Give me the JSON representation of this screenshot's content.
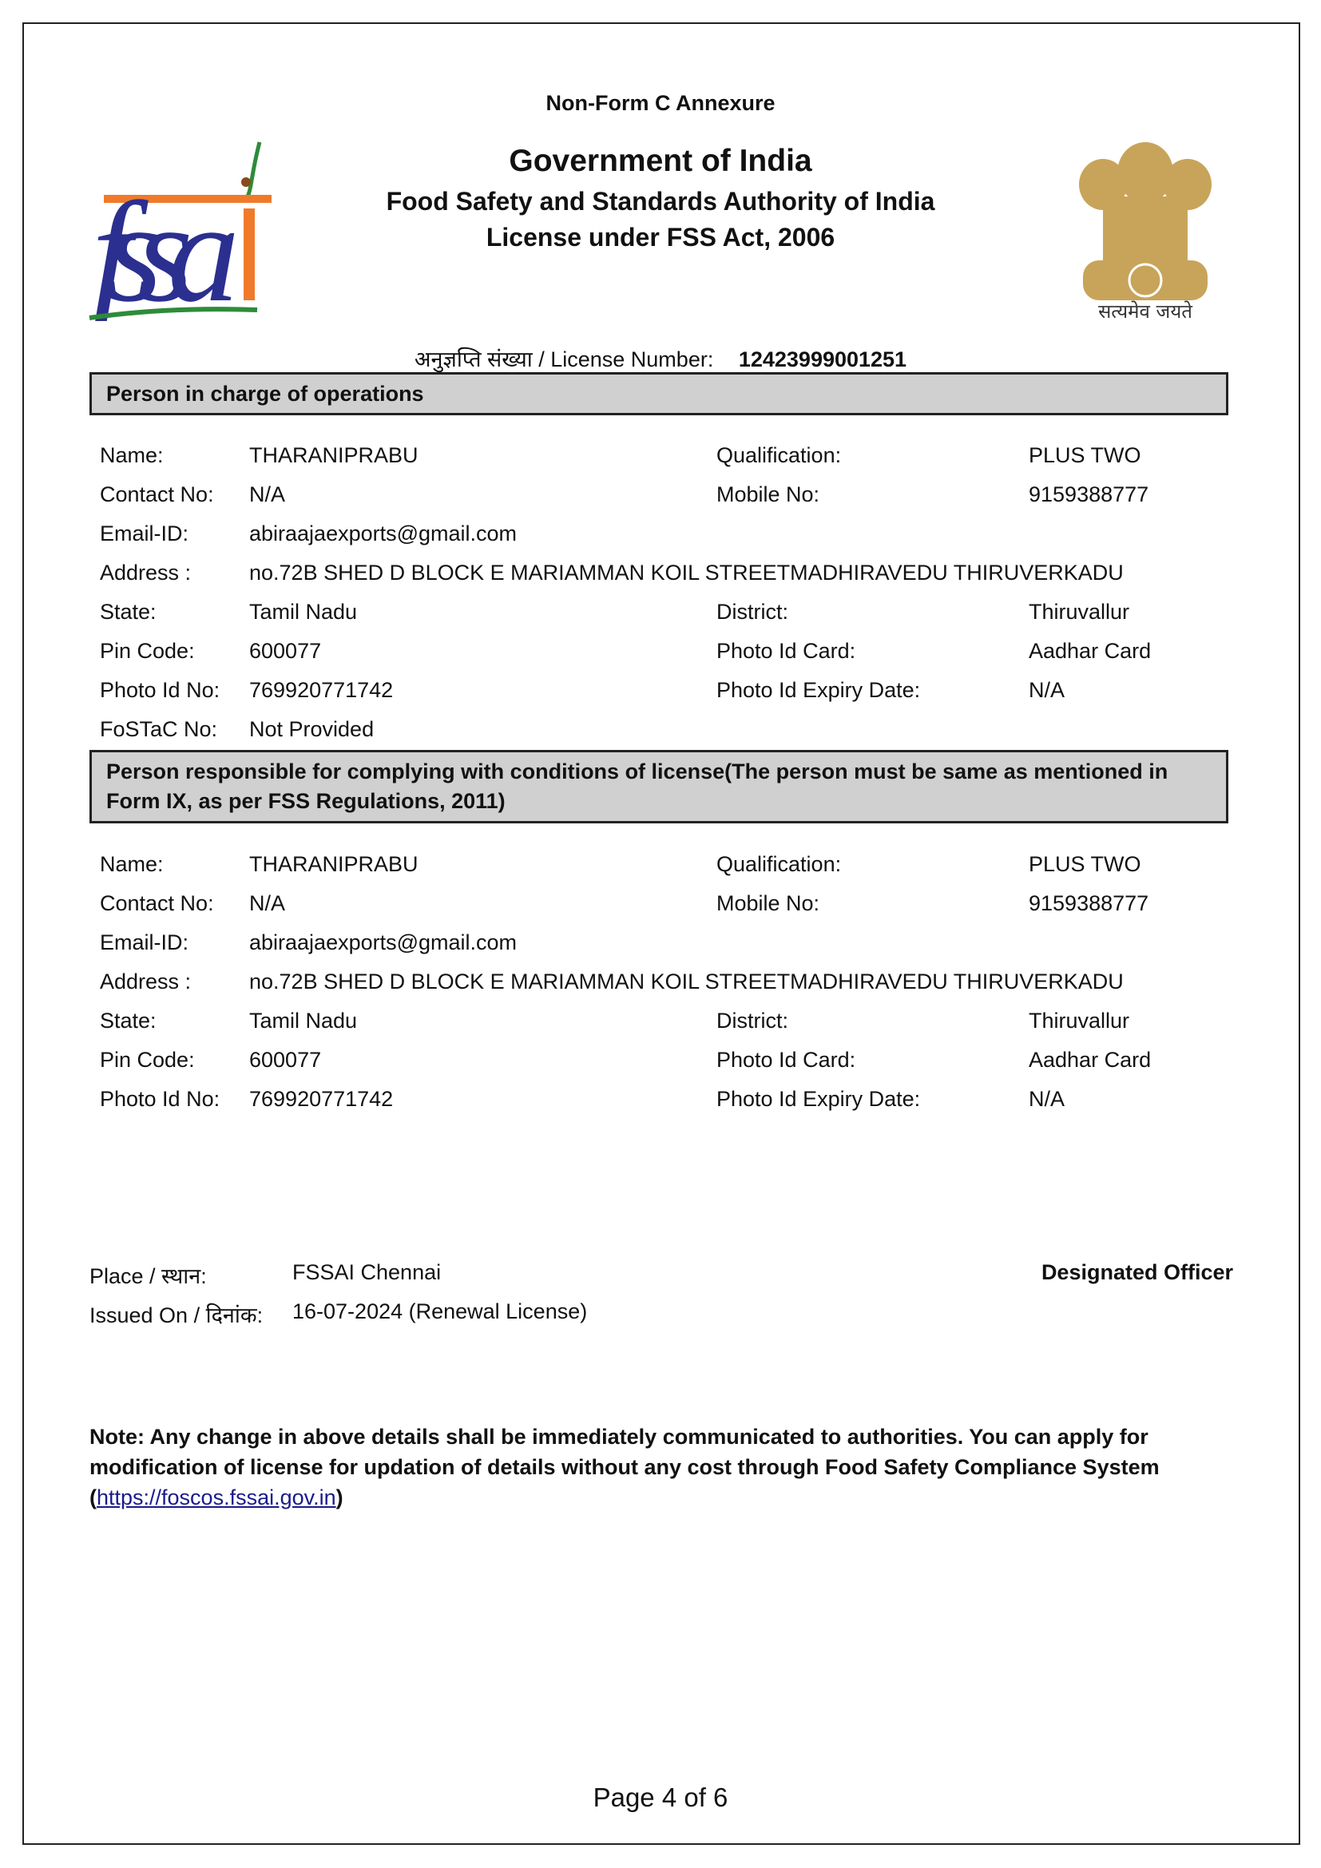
{
  "header": {
    "annexure": "Non-Form C Annexure",
    "title": "Government of India",
    "subtitle": "Food Safety and Standards Authority of India",
    "act": "License under FSS Act, 2006",
    "logo_text": "fssai",
    "emblem_motto": "सत्यमेव जयते",
    "license_label": "अनुज्ञप्ति संख्या / License Number:",
    "license_number": "12423999001251"
  },
  "section1": {
    "heading": "Person in charge of operations",
    "rows": [
      {
        "l1": "Name:",
        "v1": "THARANIPRABU",
        "l2": "Qualification:",
        "v2": "PLUS TWO"
      },
      {
        "l1": "Contact No:",
        "v1": "N/A",
        "l2": "Mobile No:",
        "v2": "9159388777"
      },
      {
        "l1": "Email-ID:",
        "v1": "abiraajaexports@gmail.com"
      },
      {
        "l1": "Address :",
        "v1": "no.72B SHED D BLOCK E MARIAMMAN KOIL STREETMADHIRAVEDU THIRUVERKADU"
      },
      {
        "l1": "State:",
        "v1": "Tamil Nadu",
        "l2": "District:",
        "v2": "Thiruvallur"
      },
      {
        "l1": "Pin Code:",
        "v1": "600077",
        "l2": "Photo Id Card:",
        "v2": "Aadhar Card"
      },
      {
        "l1": "Photo Id No:",
        "v1": "769920771742",
        "l2": "Photo Id Expiry Date:",
        "v2": "N/A"
      },
      {
        "l1": "FoSTaC No:",
        "v1": "Not Provided"
      }
    ]
  },
  "section2": {
    "heading": "Person responsible for complying with conditions of license(The person must be same as mentioned in Form IX, as per FSS Regulations, 2011)",
    "rows": [
      {
        "l1": "Name:",
        "v1": "THARANIPRABU",
        "l2": "Qualification:",
        "v2": "PLUS TWO"
      },
      {
        "l1": "Contact No:",
        "v1": "N/A",
        "l2": "Mobile No:",
        "v2": "9159388777"
      },
      {
        "l1": "Email-ID:",
        "v1": "abiraajaexports@gmail.com"
      },
      {
        "l1": "Address :",
        "v1": "no.72B SHED D BLOCK E MARIAMMAN KOIL STREETMADHIRAVEDU THIRUVERKADU"
      },
      {
        "l1": "State:",
        "v1": "Tamil Nadu",
        "l2": "District:",
        "v2": "Thiruvallur"
      },
      {
        "l1": "Pin Code:",
        "v1": "600077",
        "l2": "Photo Id Card:",
        "v2": "Aadhar Card"
      },
      {
        "l1": "Photo Id No:",
        "v1": "769920771742",
        "l2": "Photo Id Expiry Date:",
        "v2": "N/A"
      }
    ]
  },
  "footer": {
    "place_label": "Place / स्थान:",
    "place_value": "FSSAI Chennai",
    "issued_label": "Issued On / दिनांक:",
    "issued_value": "16-07-2024 (Renewal License)",
    "signatory": "Designated Officer",
    "note": "Note: Any change in above details shall be immediately communicated to authorities. You can apply for modification of license for updation of details without any cost through Food Safety Compliance System (",
    "link": "https://foscos.fssai.gov.in",
    "note_end": ")",
    "page": "Page 4 of 6"
  }
}
